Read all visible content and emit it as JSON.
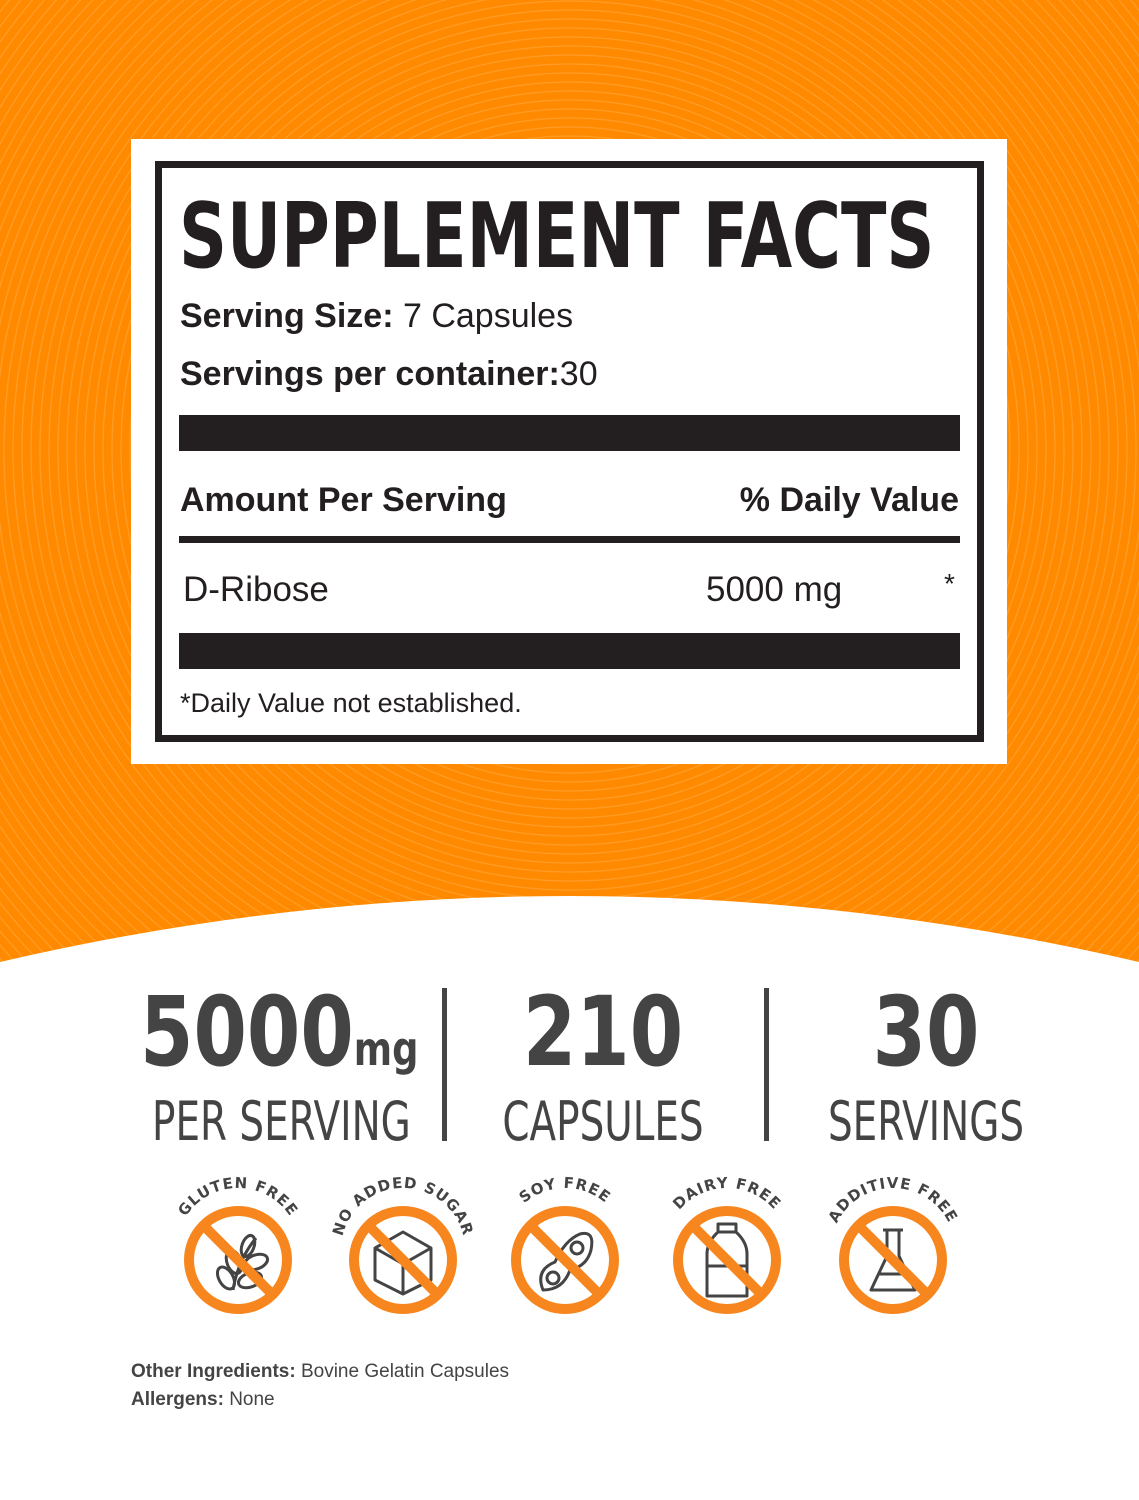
{
  "colors": {
    "orange": "#FF8A00",
    "dark": "#231f20",
    "gray": "#444444"
  },
  "facts": {
    "title": "SUPPLEMENT FACTS",
    "serving_size_label": "Serving Size:",
    "serving_size_value": "7 Capsules",
    "servings_label": "Servings per container:",
    "servings_value": "30",
    "amount_header": "Amount Per Serving",
    "dv_header": "% Daily Value",
    "ingredient": {
      "name": "D-Ribose",
      "amount": "5000 mg",
      "dv": "*"
    },
    "footnote": "*Daily Value not established."
  },
  "stats": [
    {
      "number": "5000",
      "unit": "mg",
      "label": "PER SERVING"
    },
    {
      "number": "210",
      "label": "CAPSULES"
    },
    {
      "number": "30",
      "label": "SERVINGS"
    }
  ],
  "badges": [
    {
      "label": "GLUTEN FREE",
      "icon": "wheat-icon"
    },
    {
      "label": "NO ADDED SUGAR",
      "icon": "sugar-cube-icon"
    },
    {
      "label": "SOY FREE",
      "icon": "soybean-icon"
    },
    {
      "label": "DAIRY FREE",
      "icon": "milk-bottle-icon"
    },
    {
      "label": "ADDITIVE FREE",
      "icon": "flask-icon"
    }
  ],
  "footer": {
    "other_label": "Other Ingredients:",
    "other_value": "Bovine Gelatin Capsules",
    "allergens_label": "Allergens:",
    "allergens_value": "None"
  }
}
